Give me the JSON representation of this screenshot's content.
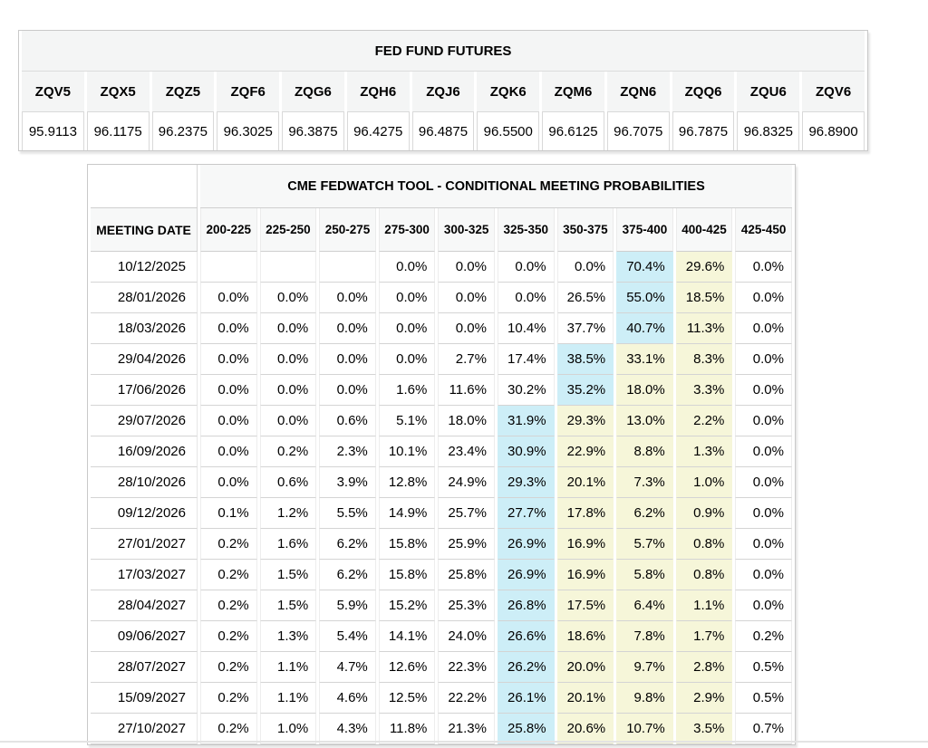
{
  "colors": {
    "futures_header_bg": "#f4f5f5",
    "fedwatch_header_bg": "#f7f8f8",
    "highlight_max": "#cdeef7",
    "highlight_trail": "#f6f6d9",
    "divider": "#e3e3e3"
  },
  "chart_data": [
    {
      "type": "table",
      "title": "FED FUND FUTURES",
      "columns": [
        "ZQV5",
        "ZQX5",
        "ZQZ5",
        "ZQF6",
        "ZQG6",
        "ZQH6",
        "ZQJ6",
        "ZQK6",
        "ZQM6",
        "ZQN6",
        "ZQQ6",
        "ZQU6",
        "ZQV6"
      ],
      "values": [
        "95.9113",
        "96.1175",
        "96.2375",
        "96.3025",
        "96.3875",
        "96.4275",
        "96.4875",
        "96.5500",
        "96.6125",
        "96.7075",
        "96.7875",
        "96.8325",
        "96.8900"
      ]
    },
    {
      "type": "table",
      "title": "CME FEDWATCH TOOL - CONDITIONAL MEETING PROBABILITIES",
      "row_header": "MEETING DATE",
      "columns": [
        "200-225",
        "225-250",
        "250-275",
        "275-300",
        "300-325",
        "325-350",
        "350-375",
        "375-400",
        "400-425",
        "425-450"
      ],
      "rows": [
        {
          "date": "10/12/2025",
          "values": [
            "",
            "",
            "",
            "0.0%",
            "0.0%",
            "0.0%",
            "0.0%",
            "70.4%",
            "29.6%",
            "0.0%"
          ],
          "max_col": 7,
          "trail_cols": [
            8
          ]
        },
        {
          "date": "28/01/2026",
          "values": [
            "0.0%",
            "0.0%",
            "0.0%",
            "0.0%",
            "0.0%",
            "0.0%",
            "26.5%",
            "55.0%",
            "18.5%",
            "0.0%"
          ],
          "max_col": 7,
          "trail_cols": [
            8
          ]
        },
        {
          "date": "18/03/2026",
          "values": [
            "0.0%",
            "0.0%",
            "0.0%",
            "0.0%",
            "0.0%",
            "10.4%",
            "37.7%",
            "40.7%",
            "11.3%",
            "0.0%"
          ],
          "max_col": 7,
          "trail_cols": [
            8
          ]
        },
        {
          "date": "29/04/2026",
          "values": [
            "0.0%",
            "0.0%",
            "0.0%",
            "0.0%",
            "2.7%",
            "17.4%",
            "38.5%",
            "33.1%",
            "8.3%",
            "0.0%"
          ],
          "max_col": 6,
          "trail_cols": [
            7,
            8
          ]
        },
        {
          "date": "17/06/2026",
          "values": [
            "0.0%",
            "0.0%",
            "0.0%",
            "1.6%",
            "11.6%",
            "30.2%",
            "35.2%",
            "18.0%",
            "3.3%",
            "0.0%"
          ],
          "max_col": 6,
          "trail_cols": [
            7,
            8
          ]
        },
        {
          "date": "29/07/2026",
          "values": [
            "0.0%",
            "0.0%",
            "0.6%",
            "5.1%",
            "18.0%",
            "31.9%",
            "29.3%",
            "13.0%",
            "2.2%",
            "0.0%"
          ],
          "max_col": 5,
          "trail_cols": [
            6,
            7,
            8
          ]
        },
        {
          "date": "16/09/2026",
          "values": [
            "0.0%",
            "0.2%",
            "2.3%",
            "10.1%",
            "23.4%",
            "30.9%",
            "22.9%",
            "8.8%",
            "1.3%",
            "0.0%"
          ],
          "max_col": 5,
          "trail_cols": [
            6,
            7,
            8
          ]
        },
        {
          "date": "28/10/2026",
          "values": [
            "0.0%",
            "0.6%",
            "3.9%",
            "12.8%",
            "24.9%",
            "29.3%",
            "20.1%",
            "7.3%",
            "1.0%",
            "0.0%"
          ],
          "max_col": 5,
          "trail_cols": [
            6,
            7,
            8
          ]
        },
        {
          "date": "09/12/2026",
          "values": [
            "0.1%",
            "1.2%",
            "5.5%",
            "14.9%",
            "25.7%",
            "27.7%",
            "17.8%",
            "6.2%",
            "0.9%",
            "0.0%"
          ],
          "max_col": 5,
          "trail_cols": [
            6,
            7,
            8
          ]
        },
        {
          "date": "27/01/2027",
          "values": [
            "0.2%",
            "1.6%",
            "6.2%",
            "15.8%",
            "25.9%",
            "26.9%",
            "16.9%",
            "5.7%",
            "0.8%",
            "0.0%"
          ],
          "max_col": 5,
          "trail_cols": [
            6,
            7,
            8
          ]
        },
        {
          "date": "17/03/2027",
          "values": [
            "0.2%",
            "1.5%",
            "6.2%",
            "15.8%",
            "25.8%",
            "26.9%",
            "16.9%",
            "5.8%",
            "0.8%",
            "0.0%"
          ],
          "max_col": 5,
          "trail_cols": [
            6,
            7,
            8
          ]
        },
        {
          "date": "28/04/2027",
          "values": [
            "0.2%",
            "1.5%",
            "5.9%",
            "15.2%",
            "25.3%",
            "26.8%",
            "17.5%",
            "6.4%",
            "1.1%",
            "0.0%"
          ],
          "max_col": 5,
          "trail_cols": [
            6,
            7,
            8
          ]
        },
        {
          "date": "09/06/2027",
          "values": [
            "0.2%",
            "1.3%",
            "5.4%",
            "14.1%",
            "24.0%",
            "26.6%",
            "18.6%",
            "7.8%",
            "1.7%",
            "0.2%"
          ],
          "max_col": 5,
          "trail_cols": [
            6,
            7,
            8
          ]
        },
        {
          "date": "28/07/2027",
          "values": [
            "0.2%",
            "1.1%",
            "4.7%",
            "12.6%",
            "22.3%",
            "26.2%",
            "20.0%",
            "9.7%",
            "2.8%",
            "0.5%"
          ],
          "max_col": 5,
          "trail_cols": [
            6,
            7,
            8
          ]
        },
        {
          "date": "15/09/2027",
          "values": [
            "0.2%",
            "1.1%",
            "4.6%",
            "12.5%",
            "22.2%",
            "26.1%",
            "20.1%",
            "9.8%",
            "2.9%",
            "0.5%"
          ],
          "max_col": 5,
          "trail_cols": [
            6,
            7,
            8
          ]
        },
        {
          "date": "27/10/2027",
          "values": [
            "0.2%",
            "1.0%",
            "4.3%",
            "11.8%",
            "21.3%",
            "25.8%",
            "20.6%",
            "10.7%",
            "3.5%",
            "0.7%"
          ],
          "max_col": 5,
          "trail_cols": [
            6,
            7,
            8
          ]
        }
      ]
    }
  ]
}
